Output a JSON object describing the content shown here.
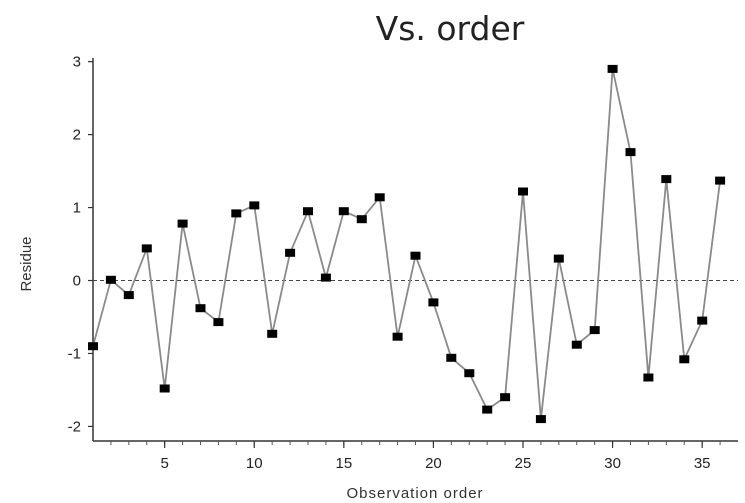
{
  "chart_data": {
    "type": "line",
    "title": "Vs. order",
    "xlabel": "Observation order",
    "ylabel": "Residue",
    "xlim": [
      1,
      37
    ],
    "ylim": [
      -2.2,
      3.05
    ],
    "xticks": [
      5,
      10,
      15,
      20,
      25,
      30,
      35
    ],
    "yticks": [
      -2,
      -1,
      0,
      1,
      2,
      3
    ],
    "grid": false,
    "reference_line": {
      "y": 0,
      "style": "dashed"
    },
    "series": [
      {
        "x": [
          1,
          2,
          3,
          4,
          5,
          6,
          7,
          8,
          9,
          10,
          11,
          12,
          13,
          14,
          15,
          16,
          17,
          18,
          19,
          20,
          21,
          22,
          23,
          24,
          25,
          26,
          27,
          28,
          29,
          30,
          31,
          32,
          33,
          34,
          35,
          36
        ],
        "values": [
          -0.9,
          0.01,
          -0.2,
          0.44,
          -1.48,
          0.78,
          -0.38,
          -0.57,
          0.92,
          1.03,
          -0.73,
          0.38,
          0.95,
          0.04,
          0.95,
          0.84,
          1.14,
          -0.77,
          0.34,
          -0.3,
          -1.06,
          -1.27,
          -1.77,
          -1.6,
          1.22,
          -1.9,
          0.3,
          -0.88,
          -0.68,
          2.9,
          1.76,
          -1.33,
          1.39,
          -1.08,
          -0.55,
          1.37
        ],
        "color": "#000000",
        "line_color": "#8a8a8a",
        "marker": "square"
      }
    ]
  }
}
